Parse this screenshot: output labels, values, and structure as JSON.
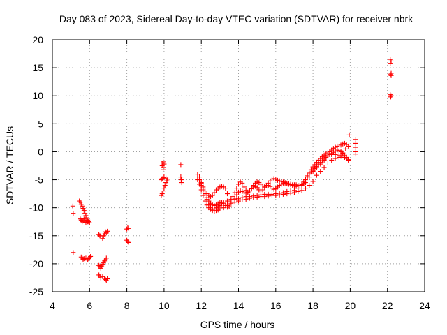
{
  "chart_data": {
    "type": "scatter",
    "title": "Day 083 of 2023, Sidereal Day-to-day VTEC variation (SDTVAR) for receiver nbrk",
    "xlabel": "GPS time / hours",
    "ylabel": "SDTVAR / TECUs",
    "xlim": [
      4,
      24
    ],
    "ylim": [
      -25,
      20
    ],
    "xticks": [
      4,
      6,
      8,
      10,
      12,
      14,
      16,
      18,
      20,
      22,
      24
    ],
    "yticks": [
      -25,
      -20,
      -15,
      -10,
      -5,
      0,
      5,
      10,
      15,
      20
    ],
    "grid": true,
    "marker": "+",
    "color": "#ff0000",
    "series": [
      {
        "name": "SDTVAR",
        "x": [
          5.1,
          5.12,
          5.12,
          5.45,
          5.5,
          5.55,
          5.6,
          5.65,
          5.7,
          5.75,
          5.8,
          5.85,
          5.9,
          5.95,
          6.0,
          5.5,
          5.55,
          5.6,
          5.65,
          5.7,
          5.75,
          5.8,
          5.85,
          5.9,
          5.95,
          5.55,
          5.6,
          5.65,
          5.7,
          5.8,
          5.9,
          5.95,
          6.0,
          6.05,
          6.5,
          6.55,
          6.6,
          6.7,
          6.75,
          6.8,
          6.85,
          6.9,
          6.95,
          6.5,
          6.55,
          6.6,
          6.65,
          6.7,
          6.75,
          6.8,
          6.85,
          6.9,
          6.5,
          6.55,
          6.6,
          6.7,
          6.8,
          6.85,
          6.9,
          6.95,
          8.0,
          8.05,
          8.1,
          8.0,
          8.05,
          8.1,
          9.85,
          9.9,
          9.95,
          10.0,
          10.05,
          10.1,
          10.15,
          10.2,
          9.85,
          9.9,
          9.95,
          10.0,
          10.1,
          10.2,
          9.9,
          9.95,
          9.95,
          10.0,
          9.9,
          9.95,
          10.9,
          10.9,
          10.92,
          10.95,
          11.8,
          11.9,
          12.0,
          12.1,
          12.2,
          12.3,
          12.4,
          12.5,
          12.6,
          12.7,
          12.8,
          12.9,
          13.0,
          13.1,
          13.2,
          13.4,
          13.6,
          13.8,
          14.0,
          14.2,
          14.4,
          14.6,
          14.8,
          15.0,
          15.2,
          15.4,
          15.6,
          15.8,
          16.0,
          16.2,
          16.4,
          16.6,
          16.8,
          17.0,
          17.2,
          17.4,
          17.6,
          17.8,
          18.0,
          18.2,
          18.4,
          18.6,
          18.8,
          19.0,
          19.2,
          19.4,
          11.8,
          11.9,
          12.0,
          12.1,
          12.2,
          12.3,
          12.4,
          12.5,
          12.6,
          12.7,
          12.8,
          12.9,
          13.0,
          13.2,
          13.4,
          13.6,
          13.8,
          14.0,
          14.2,
          14.4,
          14.6,
          14.8,
          15.0,
          15.2,
          15.4,
          15.6,
          15.8,
          16.0,
          16.2,
          16.4,
          16.6,
          16.8,
          17.0,
          17.2,
          17.4,
          17.6,
          17.8,
          18.0,
          18.2,
          18.4,
          18.6,
          18.8,
          19.0,
          19.2,
          19.4,
          11.9,
          12.0,
          12.1,
          12.2,
          12.3,
          12.4,
          12.5,
          12.6,
          12.7,
          12.8,
          12.9,
          13.0,
          13.1,
          13.2,
          13.3,
          13.4,
          13.6,
          13.7,
          13.8,
          13.9,
          14.0,
          14.1,
          14.2,
          14.3,
          14.4,
          14.5,
          14.6,
          14.7,
          14.8,
          14.9,
          15.0,
          15.1,
          15.2,
          15.3,
          15.4,
          15.5,
          15.6,
          15.7,
          15.8,
          15.9,
          16.0,
          16.1,
          16.2,
          16.3,
          16.4,
          16.5,
          16.6,
          16.7,
          16.8,
          16.9,
          17.0,
          17.1,
          17.2,
          17.3,
          17.4,
          17.5,
          17.6,
          17.7,
          17.8,
          17.9,
          18.0,
          18.1,
          18.2,
          18.3,
          18.4,
          18.5,
          18.6,
          18.7,
          18.8,
          18.9,
          19.0,
          19.1,
          19.2,
          19.3,
          19.4,
          12.0,
          12.1,
          12.2,
          12.3,
          12.4,
          12.5,
          12.6,
          12.7,
          12.8,
          12.9,
          13.0,
          13.1,
          13.2,
          13.3,
          13.4,
          13.5,
          13.7,
          13.8,
          13.9,
          14.0,
          14.1,
          14.2,
          14.3,
          14.4,
          14.5,
          14.6,
          14.7,
          14.8,
          14.9,
          15.0,
          15.1,
          15.2,
          15.3,
          15.4,
          15.5,
          15.6,
          15.7,
          15.8,
          15.9,
          16.0,
          16.1,
          16.2,
          16.3,
          16.4,
          16.5,
          16.6,
          16.7,
          16.8,
          16.9,
          17.0,
          17.1,
          17.2,
          17.3,
          17.4,
          17.5,
          17.6,
          17.7,
          17.8,
          17.9,
          18.0,
          18.1,
          18.2,
          18.3,
          18.4,
          18.5,
          18.6,
          18.7,
          18.8,
          18.9,
          19.0,
          19.1,
          19.2,
          19.3,
          19.5,
          19.6,
          19.7,
          19.8,
          19.9,
          19.5,
          19.6,
          19.7,
          19.8,
          19.9,
          19.5,
          19.7,
          19.8,
          19.9,
          19.6,
          19.75,
          19.95,
          20.3,
          20.3,
          20.3,
          20.3,
          20.3,
          22.15,
          22.2,
          22.15,
          22.2,
          22.15,
          22.2,
          22.15,
          22.2,
          22.18
        ],
        "y": [
          -9.7,
          -11.0,
          -18.0,
          -8.8,
          -9.0,
          -9.4,
          -9.7,
          -10.1,
          -10.5,
          -11.0,
          -11.4,
          -11.8,
          -12.2,
          -12.5,
          -12.7,
          -12.0,
          -12.2,
          -12.5,
          -12.3,
          -12.0,
          -12.3,
          -12.6,
          -12.2,
          -12.5,
          -12.4,
          -18.8,
          -19.0,
          -19.2,
          -19.1,
          -19.0,
          -19.3,
          -19.1,
          -18.9,
          -18.7,
          -14.8,
          -15.0,
          -15.2,
          -15.5,
          -15.0,
          -14.7,
          -14.3,
          -14.5,
          -14.2,
          -20.3,
          -20.5,
          -20.8,
          -20.4,
          -20.1,
          -19.8,
          -19.5,
          -19.3,
          -19.0,
          -22.0,
          -22.2,
          -22.5,
          -22.3,
          -22.6,
          -22.8,
          -23.0,
          -22.7,
          -13.8,
          -13.6,
          -13.7,
          -15.8,
          -16.0,
          -16.2,
          -7.8,
          -7.5,
          -7.0,
          -6.5,
          -6.0,
          -5.5,
          -5.2,
          -4.9,
          -5.0,
          -4.8,
          -4.6,
          -4.5,
          -4.7,
          -4.9,
          -2.5,
          -2.8,
          -3.2,
          -2.2,
          -2.0,
          -1.8,
          -2.3,
          -4.5,
          -5.0,
          -5.5,
          -4.0,
          -4.5,
          -5.5,
          -6.5,
          -7.5,
          -8.5,
          -9.5,
          -10.0,
          -10.3,
          -10.2,
          -10.0,
          -9.8,
          -9.6,
          -9.3,
          -9.0,
          -8.8,
          -8.6,
          -8.5,
          -8.4,
          -8.2,
          -8.0,
          -8.0,
          -7.9,
          -7.8,
          -7.7,
          -7.6,
          -7.6,
          -7.6,
          -7.5,
          -7.4,
          -7.3,
          -7.1,
          -7.0,
          -6.9,
          -6.5,
          -6.0,
          -5.5,
          -4.5,
          -3.5,
          -2.8,
          -2.2,
          -1.5,
          -0.8,
          -0.5,
          -0.5,
          -0.6,
          -5.0,
          -5.8,
          -6.8,
          -7.8,
          -8.8,
          -9.5,
          -10.0,
          -10.3,
          -10.5,
          -10.6,
          -10.5,
          -10.4,
          -10.2,
          -10.0,
          -9.6,
          -9.2,
          -9.0,
          -8.8,
          -8.6,
          -8.5,
          -8.3,
          -8.2,
          -8.1,
          -8.0,
          -8.0,
          -7.9,
          -7.8,
          -7.8,
          -7.7,
          -7.6,
          -7.5,
          -7.4,
          -7.3,
          -7.1,
          -6.9,
          -6.5,
          -6.0,
          -5.3,
          -4.2,
          -3.5,
          -2.8,
          -2.0,
          -1.5,
          -1.2,
          -1.0,
          -5.0,
          -5.6,
          -6.3,
          -7.0,
          -7.5,
          -7.8,
          -8.0,
          -7.8,
          -7.3,
          -6.8,
          -6.5,
          -6.3,
          -6.2,
          -6.3,
          -6.5,
          -7.5,
          -8.5,
          -8.0,
          -7.3,
          -6.5,
          -5.8,
          -5.4,
          -5.6,
          -6.3,
          -6.9,
          -7.2,
          -7.0,
          -6.5,
          -6.0,
          -5.6,
          -5.4,
          -5.5,
          -5.8,
          -6.1,
          -6.2,
          -6.0,
          -5.6,
          -5.2,
          -4.9,
          -4.8,
          -4.9,
          -5.1,
          -5.2,
          -5.3,
          -5.4,
          -5.5,
          -5.6,
          -5.7,
          -5.8,
          -5.9,
          -5.9,
          -5.9,
          -6.0,
          -6.0,
          -5.9,
          -5.6,
          -5.0,
          -4.5,
          -4.0,
          -3.6,
          -3.3,
          -3.0,
          -2.6,
          -2.2,
          -1.9,
          -1.6,
          -1.3,
          -1.0,
          -0.7,
          -0.5,
          -0.3,
          -0.1,
          0.1,
          0.3,
          0.2,
          -6.0,
          -6.8,
          -7.5,
          -8.2,
          -8.8,
          -9.2,
          -9.5,
          -9.6,
          -9.5,
          -9.3,
          -9.1,
          -9.0,
          -9.2,
          -9.6,
          -9.9,
          -9.8,
          -9.0,
          -8.3,
          -7.7,
          -7.2,
          -7.0,
          -7.1,
          -7.3,
          -7.4,
          -7.3,
          -7.0,
          -6.6,
          -6.3,
          -6.2,
          -6.4,
          -6.8,
          -7.0,
          -6.8,
          -6.4,
          -6.1,
          -6.0,
          -6.2,
          -6.5,
          -6.7,
          -6.6,
          -6.3,
          -6.0,
          -5.8,
          -5.6,
          -5.6,
          -5.7,
          -5.8,
          -5.9,
          -6.0,
          -6.1,
          -6.2,
          -6.1,
          -6.0,
          -5.8,
          -5.4,
          -4.9,
          -4.3,
          -3.8,
          -3.2,
          -2.7,
          -2.3,
          -1.9,
          -1.5,
          -1.2,
          -0.9,
          -0.6,
          -0.4,
          -0.2,
          0.0,
          0.3,
          0.6,
          0.8,
          1.0,
          1.2,
          1.4,
          1.5,
          1.3,
          1.0,
          0.0,
          -0.3,
          -0.6,
          -1.0,
          -1.5,
          -0.8,
          -1.0,
          -1.2,
          -1.4,
          -0.2,
          0.5,
          3.0,
          2.2,
          1.5,
          0.8,
          0.0,
          -0.4,
          16.5,
          16.2,
          15.8,
          14.0,
          13.8,
          13.6,
          10.2,
          10.0,
          9.8
        ]
      }
    ]
  }
}
